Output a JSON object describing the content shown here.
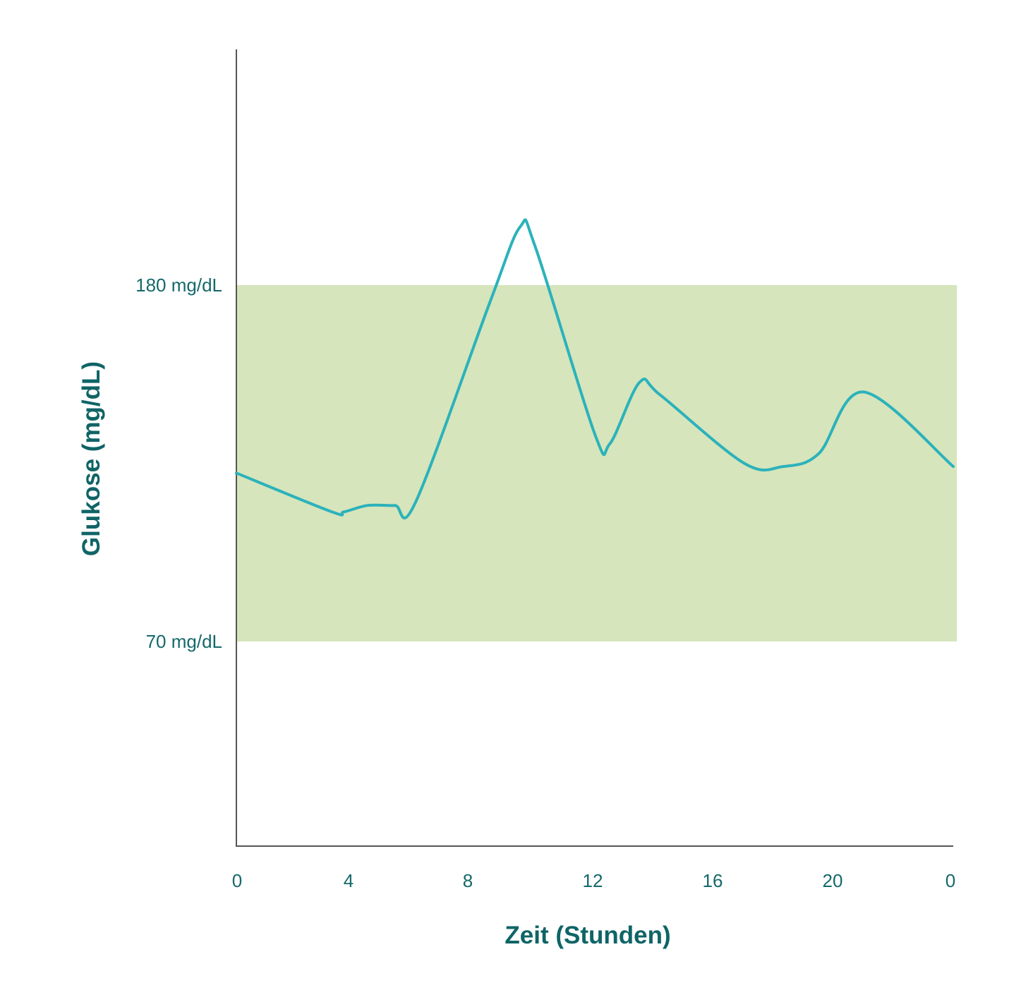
{
  "chart_data": {
    "type": "line",
    "xlabel": "Zeit (Stunden)",
    "ylabel": "Glukose (mg/dL)",
    "x_ticks": [
      "0",
      "4",
      "8",
      "12",
      "16",
      "20",
      "0"
    ],
    "y_ticks": [
      "70 mg/dL",
      "180 mg/dL"
    ],
    "target_range": {
      "low": 70,
      "high": 180
    },
    "xlim": [
      0,
      24
    ],
    "series": [
      {
        "x": [
          0,
          3.2,
          3.6,
          4.4,
          5.3,
          6,
          8.5,
          9.5,
          10,
          12,
          12.5,
          13.5,
          14.2,
          17,
          18.3,
          19.5,
          21,
          24
        ],
        "y": [
          122,
          110,
          110,
          112,
          112,
          113,
          175,
          198,
          192,
          134,
          131,
          150,
          146,
          125,
          124,
          128,
          147,
          124
        ]
      }
    ],
    "colors": {
      "line": "#2bb2bb",
      "band": "#d6e5bc",
      "axis": "#555555",
      "text": "#15696b"
    },
    "grid": false
  }
}
